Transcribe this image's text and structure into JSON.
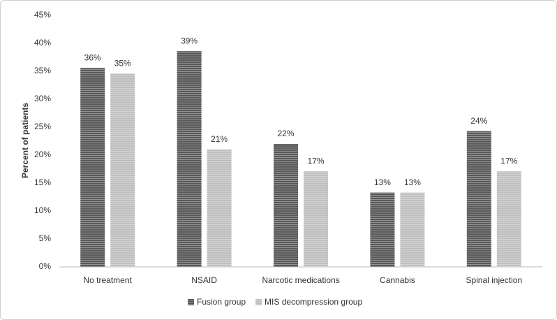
{
  "chart_data": {
    "type": "bar",
    "y_label": "Percent of patients",
    "categories": [
      "No treatment",
      "NSAID",
      "Narcotic medications",
      "Cannabis",
      "Spinal injection"
    ],
    "series": [
      {
        "name": "Fusion group",
        "color": "#595959",
        "values": [
          35.6,
          38.6,
          22.0,
          13.3,
          24.3
        ],
        "value_labels": [
          "36%",
          "39%",
          "22%",
          "13%",
          "24%"
        ]
      },
      {
        "name": "MIS decompression group",
        "color": "#bfbfbf",
        "values": [
          34.6,
          21.0,
          17.1,
          13.3,
          17.1
        ],
        "value_labels": [
          "35%",
          "21%",
          "17%",
          "13%",
          "17%"
        ]
      }
    ],
    "ylim": [
      0,
      45
    ],
    "yticks": [
      {
        "value": 0,
        "label": "0%"
      },
      {
        "value": 5,
        "label": "5%"
      },
      {
        "value": 10,
        "label": "10%"
      },
      {
        "value": 15,
        "label": "15%"
      },
      {
        "value": 20,
        "label": "20%"
      },
      {
        "value": 25,
        "label": "25%"
      },
      {
        "value": 30,
        "label": "30%"
      },
      {
        "value": 35,
        "label": "35%"
      },
      {
        "value": 40,
        "label": "40%"
      },
      {
        "value": 45,
        "label": "45%"
      }
    ],
    "grid": false,
    "legend": "bottom"
  }
}
